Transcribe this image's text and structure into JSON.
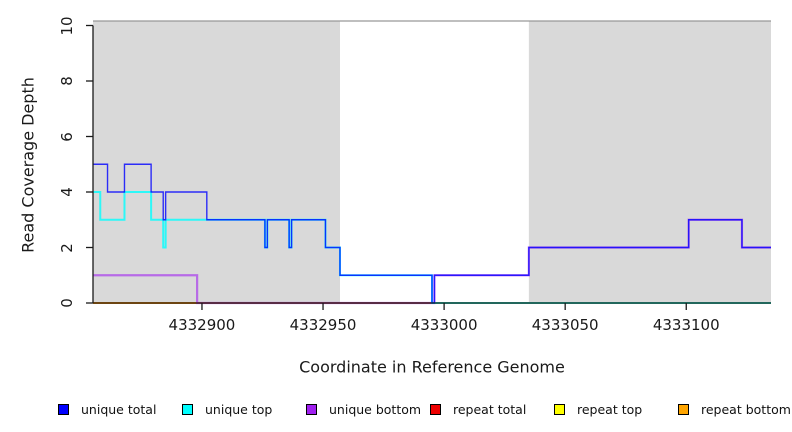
{
  "chart_data": {
    "type": "line",
    "subtype": "step-coverage",
    "title": "",
    "xlabel": "Coordinate in Reference Genome",
    "ylabel": "Read Coverage Depth",
    "xlim": [
      4332855,
      4333135
    ],
    "ylim": [
      0,
      10
    ],
    "grid": false,
    "legend_position": "bottom",
    "x_ticks": [
      {
        "value": 4332900,
        "label": "4332900"
      },
      {
        "value": 4332950,
        "label": "4332950"
      },
      {
        "value": 4333000,
        "label": "4333000"
      },
      {
        "value": 4333050,
        "label": "4333050"
      },
      {
        "value": 4333100,
        "label": "4333100"
      }
    ],
    "y_ticks": [
      {
        "value": 0,
        "label": "0"
      },
      {
        "value": 2,
        "label": "2"
      },
      {
        "value": 4,
        "label": "4"
      },
      {
        "value": 6,
        "label": "6"
      },
      {
        "value": 8,
        "label": "8"
      },
      {
        "value": 10,
        "label": "10"
      }
    ],
    "colors": {
      "shade": "#d9d9d9",
      "axis": "#1a1a1a",
      "top_border": "#999999",
      "background": "#ffffff"
    },
    "shaded_regions": [
      {
        "x0": 4332855,
        "x1": 4332957
      },
      {
        "x0": 4333035,
        "x1": 4333135
      }
    ],
    "series": [
      {
        "name": "unique total",
        "color": "#0000ff",
        "steps": [
          [
            4332855,
            5
          ],
          [
            4332861,
            4
          ],
          [
            4332868,
            5
          ],
          [
            4332879,
            4
          ],
          [
            4332884,
            3
          ],
          [
            4332885,
            4
          ],
          [
            4332902,
            3
          ],
          [
            4332926,
            2
          ],
          [
            4332927,
            3
          ],
          [
            4332936,
            2
          ],
          [
            4332937,
            3
          ],
          [
            4332951,
            2
          ],
          [
            4332957,
            1
          ],
          [
            4332995,
            0
          ],
          [
            4332996,
            1
          ],
          [
            4333035,
            2
          ],
          [
            4333101,
            3
          ],
          [
            4333123,
            2
          ]
        ]
      },
      {
        "name": "unique top",
        "color": "#00ffff",
        "steps": [
          [
            4332855,
            4
          ],
          [
            4332858,
            3
          ],
          [
            4332868,
            4
          ],
          [
            4332879,
            3
          ],
          [
            4332884,
            2
          ],
          [
            4332885,
            3
          ],
          [
            4332926,
            2
          ],
          [
            4332927,
            3
          ],
          [
            4332936,
            2
          ],
          [
            4332937,
            3
          ],
          [
            4332951,
            2
          ],
          [
            4332957,
            1
          ],
          [
            4332995,
            0
          ]
        ]
      },
      {
        "name": "unique bottom",
        "color": "#a020f0",
        "steps": [
          [
            4332855,
            1
          ],
          [
            4332898,
            0
          ],
          [
            4332996,
            1
          ],
          [
            4333035,
            2
          ],
          [
            4333101,
            3
          ],
          [
            4333123,
            2
          ]
        ]
      },
      {
        "name": "repeat total",
        "color": "#ee0000",
        "steps": [
          [
            4332855,
            0
          ]
        ]
      },
      {
        "name": "repeat top",
        "color": "#ffff00",
        "steps": [
          [
            4332855,
            0
          ]
        ]
      },
      {
        "name": "repeat bottom",
        "color": "#ffa500",
        "steps": [
          [
            4332855,
            0
          ]
        ]
      }
    ],
    "legend": [
      {
        "label": "unique total",
        "color": "#0000ff"
      },
      {
        "label": "unique top",
        "color": "#00ffff"
      },
      {
        "label": "unique bottom",
        "color": "#a020f0"
      },
      {
        "label": "repeat total",
        "color": "#ee0000"
      },
      {
        "label": "repeat top",
        "color": "#ffff00"
      },
      {
        "label": "repeat bottom",
        "color": "#ffa500"
      }
    ]
  }
}
